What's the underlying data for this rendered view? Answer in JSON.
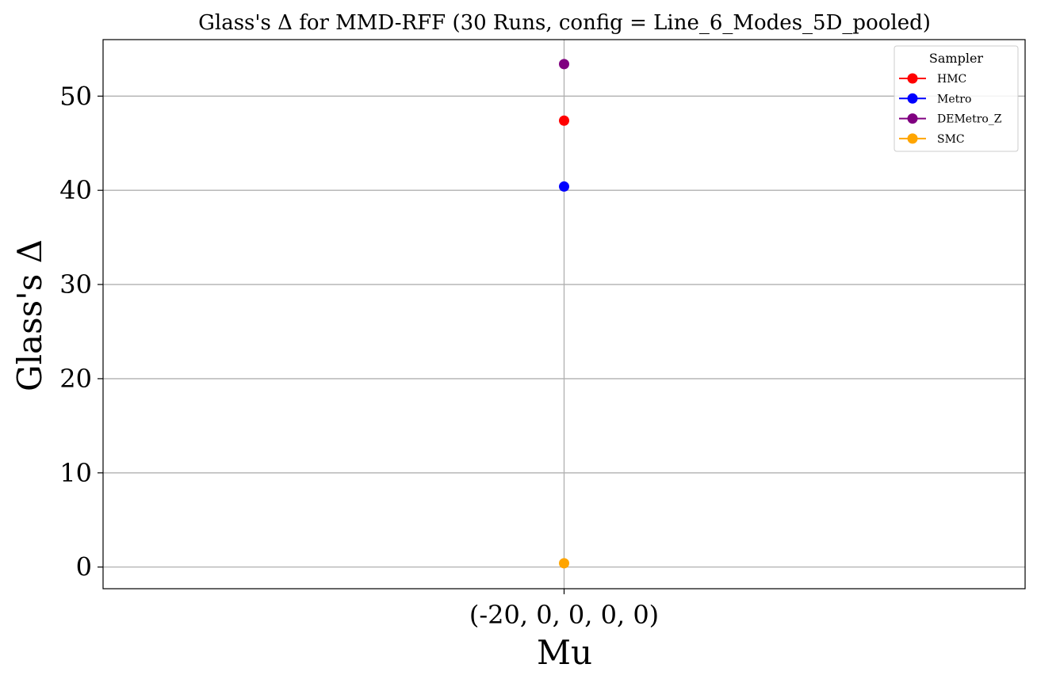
{
  "chart_data": {
    "type": "scatter",
    "title": "Glass's Δ for MMD-RFF (30 Runs, config = Line_6_Modes_5D_pooled)",
    "xlabel": "Mu",
    "ylabel": "Glass's Δ",
    "categories": [
      "(-20, 0, 0, 0, 0)"
    ],
    "ylim": [
      -2.3,
      56
    ],
    "yticks": [
      0,
      10,
      20,
      30,
      40,
      50
    ],
    "grid": true,
    "legend": {
      "title": "Sampler",
      "placement": "top-right"
    },
    "series": [
      {
        "name": "HMC",
        "color": "#ff0000",
        "values": [
          47.4
        ]
      },
      {
        "name": "Metro",
        "color": "#0000ff",
        "values": [
          40.4
        ]
      },
      {
        "name": "DEMetro_Z",
        "color": "#800080",
        "values": [
          53.4
        ]
      },
      {
        "name": "SMC",
        "color": "#ffa500",
        "values": [
          0.4
        ]
      }
    ]
  }
}
